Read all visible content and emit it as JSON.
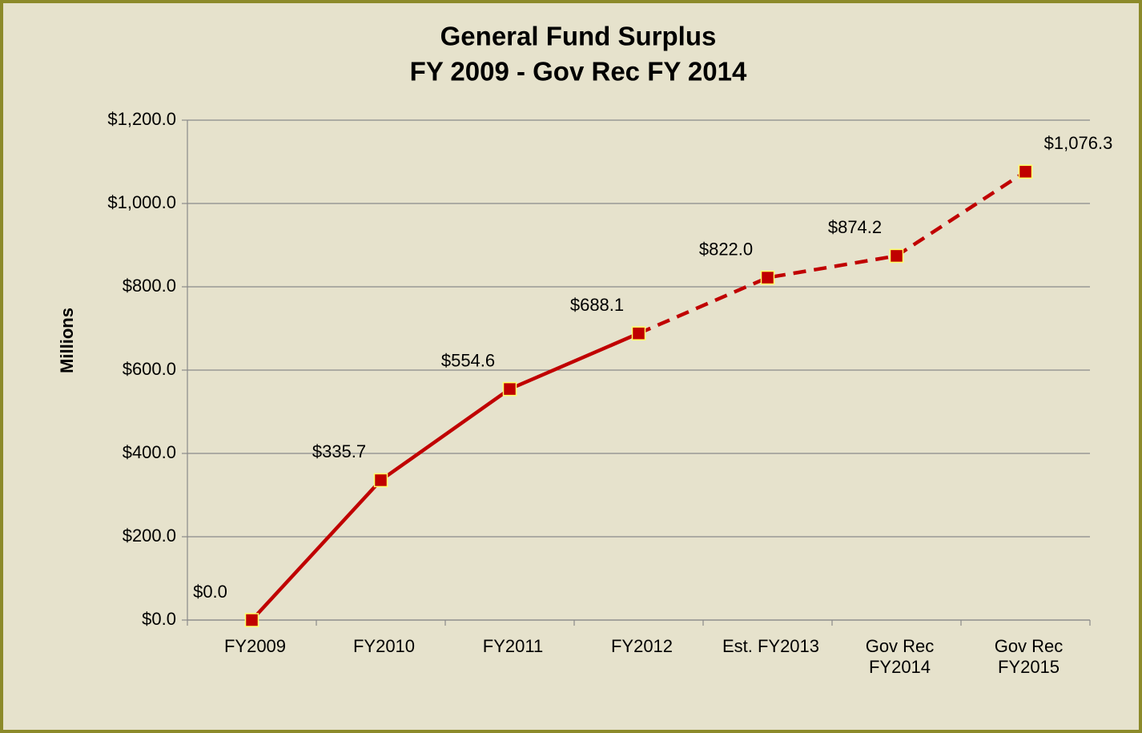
{
  "chart_data": {
    "type": "line",
    "title": "General Fund Surplus",
    "subtitle": "FY 2009 - Gov Rec FY 2014",
    "y_label": "Millions",
    "categories": [
      "FY2009",
      "FY2010",
      "FY2011",
      "FY2012",
      "Est. FY2013",
      "Gov Rec\nFY2014",
      "Gov Rec\nFY2015"
    ],
    "series": [
      {
        "color": "#c00000",
        "marker_edge": "#ffff66",
        "dash_start": 3,
        "values": [
          0,
          335.7,
          554.6,
          688.1,
          822.0,
          874.2,
          1076.3
        ],
        "value_labels": [
          "$0.0",
          "$335.7",
          "$554.6",
          "$688.1",
          "$822.0",
          "$874.2",
          "$1,076.3"
        ]
      }
    ],
    "ylim": [
      0,
      1200
    ],
    "yticks": [
      {
        "value": 0,
        "label": "$0.0"
      },
      {
        "value": 200,
        "label": "$200.0"
      },
      {
        "value": 400,
        "label": "$400.0"
      },
      {
        "value": 600,
        "label": "$600.0"
      },
      {
        "value": 800,
        "label": "$800.0"
      },
      {
        "value": 1000,
        "label": "$1,000.0"
      },
      {
        "value": 1200,
        "label": "$1,200.0"
      }
    ],
    "grid": true
  }
}
